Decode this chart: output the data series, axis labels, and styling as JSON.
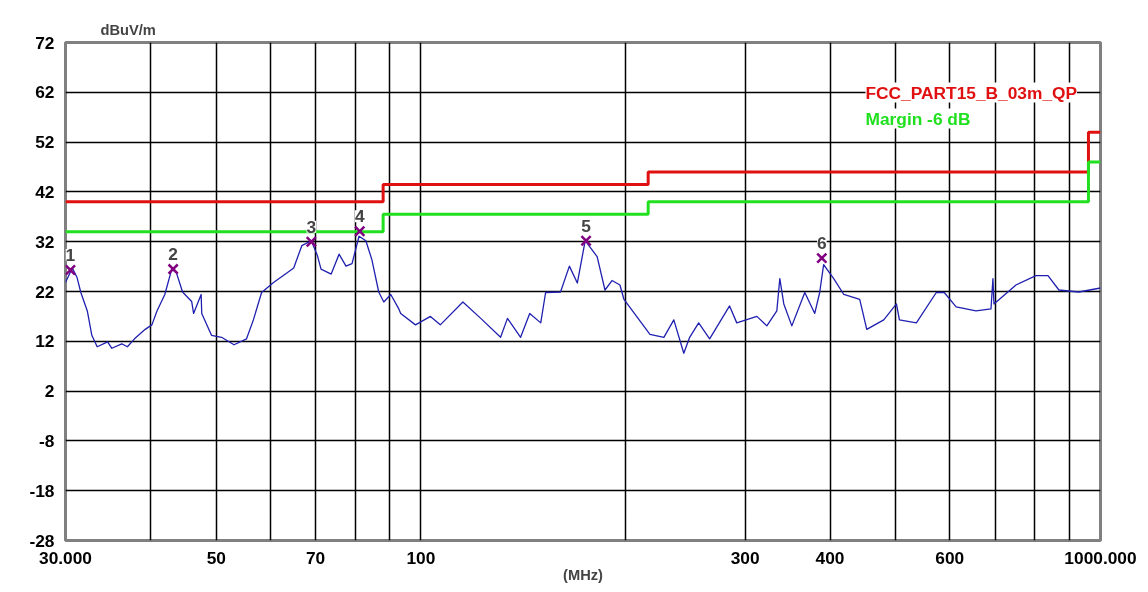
{
  "chart_data": {
    "type": "line",
    "xlabel": "(MHz)",
    "ylabel": "dBuV/m",
    "log": "x",
    "grid": true,
    "legend": false,
    "xlim": [
      30,
      1000
    ],
    "ylim": [
      -28,
      72
    ],
    "xticks": [
      {
        "value": 30,
        "label": "30.000"
      },
      {
        "value": 40,
        "label": null
      },
      50,
      {
        "value": 60,
        "label": null
      },
      70,
      {
        "value": 80,
        "label": null
      },
      {
        "value": 90,
        "label": null
      },
      100,
      {
        "value": 200,
        "label": null
      },
      300,
      400,
      {
        "value": 500,
        "label": null
      },
      600,
      {
        "value": 700,
        "label": null
      },
      {
        "value": 800,
        "label": null
      },
      {
        "value": 900,
        "label": null
      },
      {
        "value": 1000,
        "label": "1000.000"
      }
    ],
    "yticks": [
      -28,
      -18,
      -8,
      2,
      12,
      22,
      32,
      42,
      52,
      62,
      72
    ],
    "series": [
      {
        "type": "step",
        "name": "FCC_PART15_B_03m_QP",
        "color": "#e01010",
        "x": [
          30,
          88,
          216,
          960,
          1000
        ],
        "values": [
          40,
          43.5,
          46,
          54,
          54
        ]
      },
      {
        "type": "step",
        "name": "Margin -6 dB",
        "color": "#20e020",
        "x": [
          30,
          88,
          216,
          960,
          1000
        ],
        "values": [
          34,
          37.5,
          40,
          48,
          48
        ]
      },
      {
        "color": "#2020b0",
        "x": [
          30.0,
          30.7,
          31.2,
          31.6,
          32.3,
          32.8,
          33.4,
          34.6,
          35.1,
          36.3,
          37.0,
          37.9,
          39.3,
          40.2,
          40.9,
          42.0,
          43.0,
          43.7,
          44.6,
          46.0,
          46.3,
          47.5,
          47.6,
          49.2,
          50.9,
          53.1,
          55.4,
          56.7,
          58.3,
          60.7,
          63.5,
          65.0,
          66.8,
          69.0,
          70.4,
          71.3,
          73.8,
          75.8,
          77.6,
          79.2,
          81.1,
          83.0,
          84.7,
          86.7,
          88.2,
          90.3,
          92.8,
          93.4,
          98.2,
          103.3,
          106.8,
          115.3,
          122.5,
          131.0,
          134.1,
          140.2,
          144.6,
          150.1,
          152.6,
          160.5,
          165.4,
          169.9,
          174.5,
          181.7,
          186.6,
          191.1,
          196.3,
          199.0,
          217.3,
          227.8,
          235.6,
          243.7,
          248.6,
          256.3,
          266.0,
          284.6,
          291.6,
          312.2,
          322.9,
          334.0,
          337.4,
          342.0,
          351.4,
          367.2,
          379.8,
          386.2,
          391.4,
          405.0,
          419.1,
          442.3,
          453.0,
          479.8,
          500.9,
          506.0,
          535.9,
          573.3,
          588.9,
          613.2,
          655.8,
          690.0,
          694.6,
          697.0,
          750.9,
          803.6,
          837.0,
          868.6,
          929.0,
          1000.0
        ],
        "values": [
          23.8,
          26.7,
          24.8,
          21.8,
          18.1,
          13.2,
          10.9,
          11.9,
          10.6,
          11.5,
          10.9,
          12.5,
          14.4,
          15.3,
          18.1,
          21.4,
          26.5,
          25.7,
          21.9,
          20.0,
          17.6,
          21.4,
          17.6,
          13.2,
          12.8,
          11.3,
          12.5,
          16.3,
          21.8,
          23.8,
          25.7,
          26.7,
          31.2,
          32.2,
          29.3,
          26.5,
          25.5,
          29.5,
          27.1,
          27.6,
          33.1,
          32.2,
          28.4,
          21.9,
          19.9,
          21.4,
          18.5,
          17.6,
          15.3,
          17.0,
          15.3,
          19.9,
          16.6,
          12.8,
          16.6,
          12.8,
          17.6,
          15.7,
          21.8,
          21.9,
          27.1,
          23.7,
          32.2,
          29.0,
          22.3,
          24.2,
          23.3,
          20.4,
          13.4,
          12.8,
          16.3,
          9.6,
          12.8,
          15.7,
          12.5,
          19.1,
          15.7,
          17.0,
          15.1,
          18.1,
          24.6,
          19.5,
          15.1,
          21.8,
          17.6,
          21.8,
          27.4,
          24.6,
          21.4,
          20.4,
          14.4,
          16.3,
          19.5,
          16.3,
          15.7,
          21.8,
          21.8,
          18.9,
          18.1,
          18.5,
          24.6,
          19.5,
          23.3,
          25.2,
          25.2,
          22.3,
          21.9,
          22.7
        ]
      },
      {
        "type": "scatter",
        "marker": "cross",
        "color": "#800080",
        "x": [
          30.5,
          43.2,
          69.0,
          81.3,
          175.0,
          389.0
        ],
        "values": [
          26.3,
          26.5,
          32.0,
          34.1,
          32.2,
          28.7
        ]
      }
    ],
    "annotations": [
      {
        "text": "1",
        "x": 30.5,
        "y": 26.3
      },
      {
        "text": "2",
        "x": 43.2,
        "y": 26.5
      },
      {
        "text": "3",
        "x": 69.0,
        "y": 32.0
      },
      {
        "text": "4",
        "x": 81.3,
        "y": 34.1
      },
      {
        "text": "5",
        "x": 175.0,
        "y": 32.2
      },
      {
        "text": "6",
        "x": 389.0,
        "y": 28.7
      }
    ]
  }
}
